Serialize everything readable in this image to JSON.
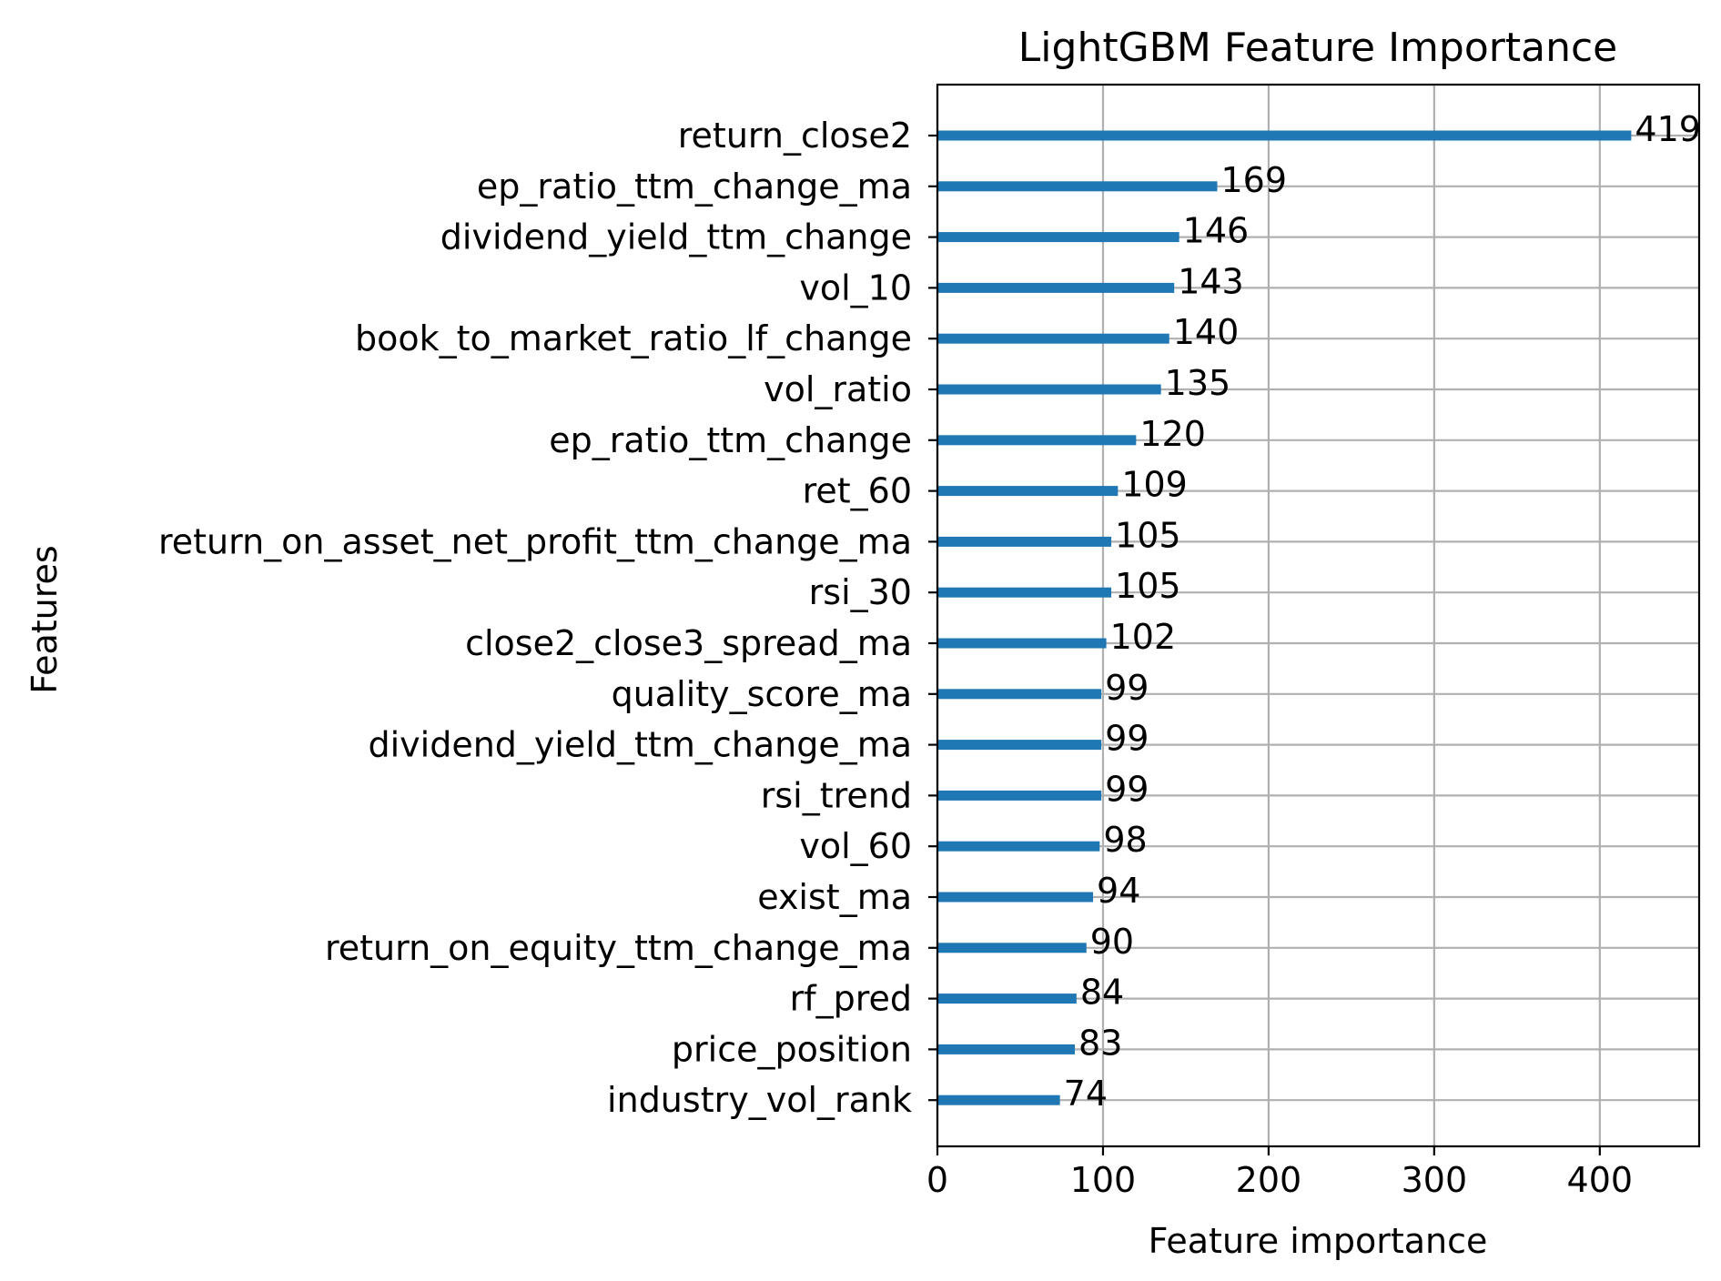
{
  "chart_data": {
    "type": "bar",
    "orientation": "horizontal",
    "title": "LightGBM Feature Importance",
    "xlabel": "Feature importance",
    "ylabel": "Features",
    "xlim": [
      0,
      460
    ],
    "xticks": [
      0,
      100,
      200,
      300,
      400
    ],
    "grid": true,
    "bar_color": "#1f77b4",
    "categories": [
      "return_close2",
      "ep_ratio_ttm_change_ma",
      "dividend_yield_ttm_change",
      "vol_10",
      "book_to_market_ratio_lf_change",
      "vol_ratio",
      "ep_ratio_ttm_change",
      "ret_60",
      "return_on_asset_net_profit_ttm_change_ma",
      "rsi_30",
      "close2_close3_spread_ma",
      "quality_score_ma",
      "dividend_yield_ttm_change_ma",
      "rsi_trend",
      "vol_60",
      "exist_ma",
      "return_on_equity_ttm_change_ma",
      "rf_pred",
      "price_position",
      "industry_vol_rank"
    ],
    "values": [
      419,
      169,
      146,
      143,
      140,
      135,
      120,
      109,
      105,
      105,
      102,
      99,
      99,
      99,
      98,
      94,
      90,
      84,
      83,
      74
    ]
  }
}
